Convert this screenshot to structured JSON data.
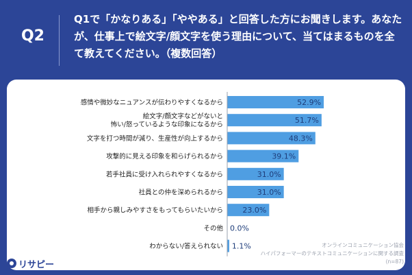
{
  "header": {
    "question_label": "Q2",
    "question_text": "Q1で「かなりある」「ややある」と回答した方にお聞きします。あなたが、仕事上で絵文字/顔文字を使う理由について、当てはまるものを全て教えてください。（複数回答）"
  },
  "colors": {
    "background": "#2c4597",
    "bar": "#4f9ee2",
    "value_text": "#1e3d7a"
  },
  "chart_data": {
    "type": "bar",
    "orientation": "horizontal",
    "categories": [
      "感情や微妙なニュアンスが伝わりやすくなるから",
      "絵文字/顔文字などがないと\n怖い/怒っているような印象になるから",
      "文字を打つ時間が減り、生産性が向上するから",
      "攻撃的に見える印象を和らげられるから",
      "若手社員に受け入れられやすくなるから",
      "社員との仲を深められるから",
      "相手から親しみやすさをもってもらいたいから",
      "その他",
      "わからない/答えられない"
    ],
    "values": [
      52.9,
      51.7,
      48.3,
      39.1,
      31.0,
      31.0,
      23.0,
      0.0,
      1.1
    ],
    "value_labels": [
      "52.9%",
      "51.7%",
      "48.3%",
      "39.1%",
      "31.0%",
      "31.0%",
      "23.0%",
      "0.0%",
      "1.1%"
    ],
    "unit": "%",
    "xlim": [
      0,
      60
    ]
  },
  "source": {
    "line1": "オンラインコミュニケーション協会",
    "line2": "ハイパフォーマーのテキストコミュニケーションに関する調査",
    "line3": "(n=87)"
  },
  "logo": {
    "text": "リサピー"
  }
}
